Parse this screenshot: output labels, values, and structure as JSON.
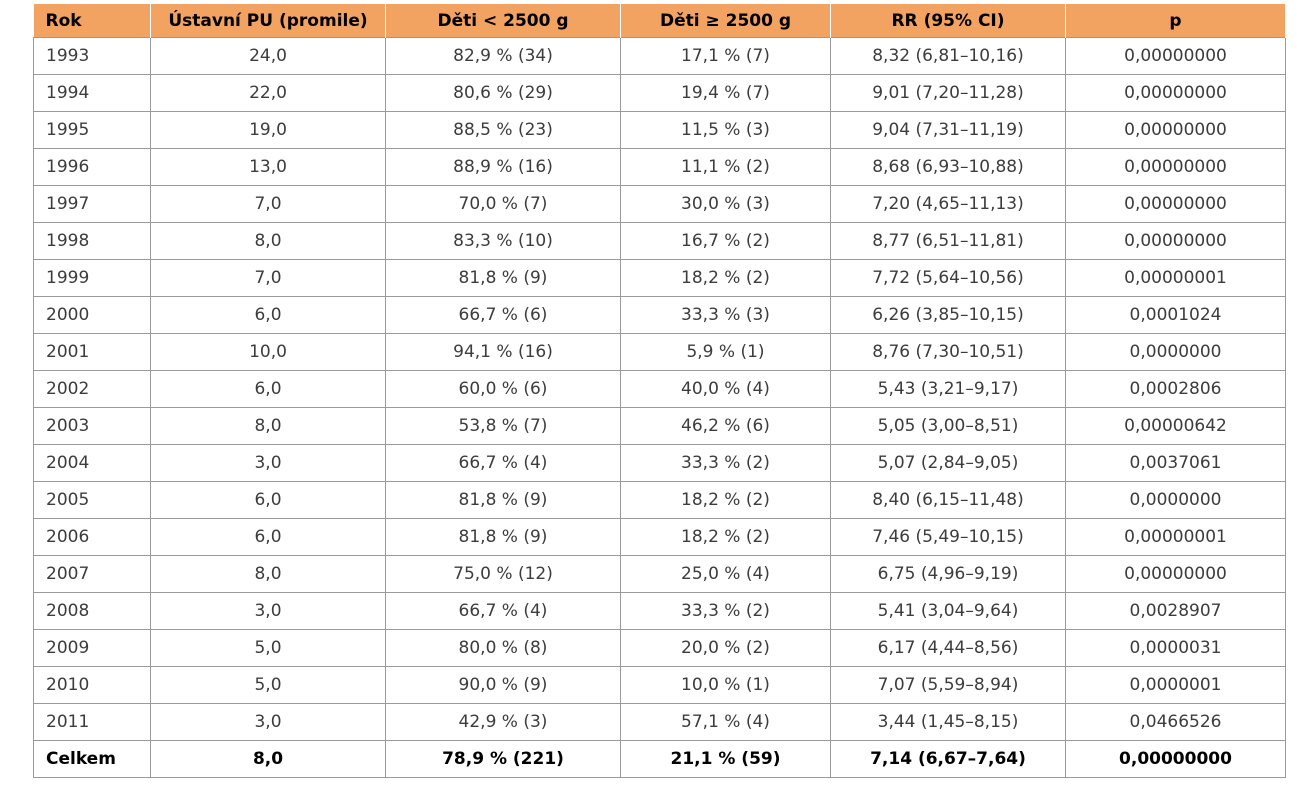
{
  "table": {
    "headers": [
      "Rok",
      "Ústavní PU (promile)",
      "Děti < 2500 g",
      "Děti ≥ 2500 g",
      "RR (95% CI)",
      "p"
    ],
    "rows": [
      [
        "1993",
        "24,0",
        "82,9 % (34)",
        "17,1 % (7)",
        "8,32 (6,81–10,16)",
        "0,00000000"
      ],
      [
        "1994",
        "22,0",
        "80,6 % (29)",
        "19,4 % (7)",
        "9,01 (7,20–11,28)",
        "0,00000000"
      ],
      [
        "1995",
        "19,0",
        "88,5 % (23)",
        "11,5 % (3)",
        "9,04 (7,31–11,19)",
        "0,00000000"
      ],
      [
        "1996",
        "13,0",
        "88,9 % (16)",
        "11,1 % (2)",
        "8,68 (6,93–10,88)",
        "0,00000000"
      ],
      [
        "1997",
        "7,0",
        "70,0 % (7)",
        "30,0 % (3)",
        "7,20 (4,65–11,13)",
        "0,00000000"
      ],
      [
        "1998",
        "8,0",
        "83,3 % (10)",
        "16,7 % (2)",
        "8,77 (6,51–11,81)",
        "0,00000000"
      ],
      [
        "1999",
        "7,0",
        "81,8 % (9)",
        "18,2 % (2)",
        "7,72 (5,64–10,56)",
        "0,00000001"
      ],
      [
        "2000",
        "6,0",
        "66,7 % (6)",
        "33,3 % (3)",
        "6,26 (3,85–10,15)",
        "0,0001024"
      ],
      [
        "2001",
        "10,0",
        "94,1 % (16)",
        "5,9 % (1)",
        "8,76 (7,30–10,51)",
        "0,0000000"
      ],
      [
        "2002",
        "6,0",
        "60,0 % (6)",
        "40,0 % (4)",
        "5,43 (3,21–9,17)",
        "0,0002806"
      ],
      [
        "2003",
        "8,0",
        "53,8 % (7)",
        "46,2 % (6)",
        "5,05 (3,00–8,51)",
        "0,00000642"
      ],
      [
        "2004",
        "3,0",
        "66,7 % (4)",
        "33,3 % (2)",
        "5,07 (2,84–9,05)",
        "0,0037061"
      ],
      [
        "2005",
        "6,0",
        "81,8 % (9)",
        "18,2 % (2)",
        "8,40 (6,15–11,48)",
        "0,0000000"
      ],
      [
        "2006",
        "6,0",
        "81,8 % (9)",
        "18,2 % (2)",
        "7,46 (5,49–10,15)",
        "0,00000001"
      ],
      [
        "2007",
        "8,0",
        "75,0 % (12)",
        "25,0 % (4)",
        "6,75 (4,96–9,19)",
        "0,00000000"
      ],
      [
        "2008",
        "3,0",
        "66,7 % (4)",
        "33,3 % (2)",
        "5,41 (3,04–9,64)",
        "0,0028907"
      ],
      [
        "2009",
        "5,0",
        "80,0 % (8)",
        "20,0 % (2)",
        "6,17 (4,44–8,56)",
        "0,0000031"
      ],
      [
        "2010",
        "5,0",
        "90,0 % (9)",
        "10,0 % (1)",
        "7,07 (5,59–8,94)",
        "0,0000001"
      ],
      [
        "2011",
        "3,0",
        "42,9 % (3)",
        "57,1 % (4)",
        "3,44 (1,45–8,15)",
        "0,0466526"
      ]
    ],
    "total": [
      "Celkem",
      "8,0",
      "78,9 % (221)",
      "21,1 % (59)",
      "7,14 (6,67–7,64)",
      "0,00000000"
    ]
  },
  "colors": {
    "header_bg": "#f2a261",
    "border": "#9a9a9a",
    "text": "#3c3c3c"
  }
}
